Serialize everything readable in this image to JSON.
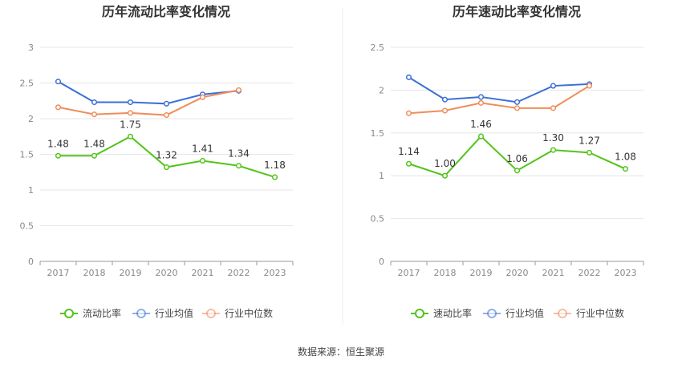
{
  "footer": "数据来源：恒生聚源",
  "chart_data": [
    {
      "type": "line",
      "title": "历年流动比率变化情况",
      "categories": [
        "2017",
        "2018",
        "2019",
        "2020",
        "2021",
        "2022",
        "2023"
      ],
      "ylim": [
        0,
        3
      ],
      "yticks": [
        "0",
        "0.5",
        "1",
        "1.5",
        "2",
        "2.5",
        "3"
      ],
      "series": [
        {
          "name": "流动比率",
          "color": "#52c41a",
          "values": [
            1.48,
            1.48,
            1.75,
            1.32,
            1.41,
            1.34,
            1.18
          ],
          "labels": [
            "1.48",
            "1.48",
            "1.75",
            "1.32",
            "1.41",
            "1.34",
            "1.18"
          ]
        },
        {
          "name": "行业均值",
          "color": "#3a6fd8",
          "values": [
            2.52,
            2.23,
            2.23,
            2.21,
            2.34,
            2.39,
            null
          ]
        },
        {
          "name": "行业中位数",
          "color": "#f08c5a",
          "values": [
            2.16,
            2.06,
            2.08,
            2.05,
            2.3,
            2.4,
            null
          ]
        }
      ]
    },
    {
      "type": "line",
      "title": "历年速动比率变化情况",
      "categories": [
        "2017",
        "2018",
        "2019",
        "2020",
        "2021",
        "2022",
        "2023"
      ],
      "ylim": [
        0,
        2.5
      ],
      "yticks": [
        "0",
        "0.5",
        "1",
        "1.5",
        "2",
        "2.5"
      ],
      "series": [
        {
          "name": "速动比率",
          "color": "#52c41a",
          "values": [
            1.14,
            1.0,
            1.46,
            1.06,
            1.3,
            1.27,
            1.08
          ],
          "labels": [
            "1.14",
            "1.00",
            "1.46",
            "1.06",
            "1.30",
            "1.27",
            "1.08"
          ]
        },
        {
          "name": "行业均值",
          "color": "#3a6fd8",
          "values": [
            2.15,
            1.89,
            1.92,
            1.86,
            2.05,
            2.07,
            null
          ]
        },
        {
          "name": "行业中位数",
          "color": "#f08c5a",
          "values": [
            1.73,
            1.76,
            1.85,
            1.79,
            1.79,
            2.05,
            null
          ]
        }
      ]
    }
  ]
}
